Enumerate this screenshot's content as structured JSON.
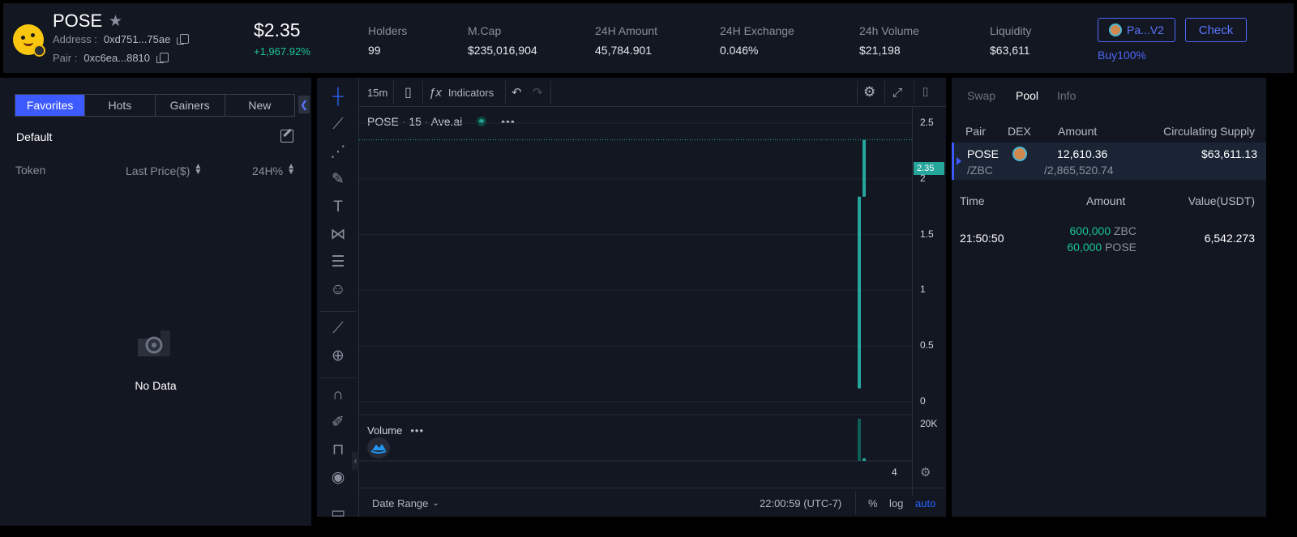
{
  "header": {
    "symbol": "POSE",
    "address_label": "Address :",
    "address_value": "0xd751...75ae",
    "pair_label": "Pair :",
    "pair_value": "0xc6ea...8810",
    "price": "$2.35",
    "change": "+1,967.92%",
    "stats": [
      {
        "label": "Holders",
        "value": "99"
      },
      {
        "label": "M.Cap",
        "value": "$235,016,904"
      },
      {
        "label": "24H Amount",
        "value": "45,784.901"
      },
      {
        "label": "24H Exchange",
        "value": "0.046%"
      },
      {
        "label": "24h Volume",
        "value": "$21,198"
      },
      {
        "label": "Liquidity",
        "value": "$63,611"
      }
    ],
    "dex_button": "Pa...V2",
    "check_button": "Check",
    "buy_link": "Buy100%"
  },
  "left_panel": {
    "tabs": [
      "Favorites",
      "Hots",
      "Gainers",
      "New"
    ],
    "active_tab": "Favorites",
    "group": "Default",
    "columns": {
      "token": "Token",
      "last_price": "Last Price($)",
      "change": "24H%"
    },
    "empty_text": "No Data"
  },
  "chart": {
    "interval": "15m",
    "indicators_label": "Indicators",
    "symbol": "POSE",
    "resolution": "15",
    "source": "Ave.ai",
    "volume_label": "Volume",
    "date_range_label": "Date Range",
    "time_display": "22:00:59 (UTC-7)",
    "scale_percent": "%",
    "scale_log": "log",
    "scale_auto": "auto",
    "y_ticks": [
      "2.5",
      "2",
      "1.5",
      "1",
      "0.5",
      "0"
    ],
    "current_price_tag": "2.35",
    "volume_tick": "20K",
    "bottom_tick": "4",
    "colors": {
      "up": "#26a69a",
      "accent": "#3d5afe"
    }
  },
  "chart_data": {
    "type": "bar",
    "title": "",
    "ylim": [
      0,
      2.5
    ],
    "candles": [
      {
        "open": 0.12,
        "close": 1.84,
        "high": 1.84,
        "low": 0.12
      },
      {
        "open": 1.84,
        "close": 2.35,
        "high": 2.35,
        "low": 1.84
      }
    ],
    "volume": [
      20000,
      1200
    ],
    "last_price": 2.35
  },
  "right_panel": {
    "tabs": [
      "Swap",
      "Pool",
      "Info"
    ],
    "active_tab": "Pool",
    "pool_headers": {
      "pair": "Pair",
      "dex": "DEX",
      "amount": "Amount",
      "supply": "Circulating Supply"
    },
    "pool_row": {
      "token": "POSE",
      "quote": "/ZBC",
      "amount": "12,610.36",
      "amount_quote": "/2,865,520.74",
      "supply": "$63,611.13"
    },
    "trade_headers": {
      "time": "Time",
      "amount": "Amount",
      "value": "Value(USDT)"
    },
    "trades": [
      {
        "time": "21:50:50",
        "amount1": "600,000",
        "unit1": "ZBC",
        "amount2": "60,000",
        "unit2": "POSE",
        "value": "6,542.273"
      }
    ]
  }
}
